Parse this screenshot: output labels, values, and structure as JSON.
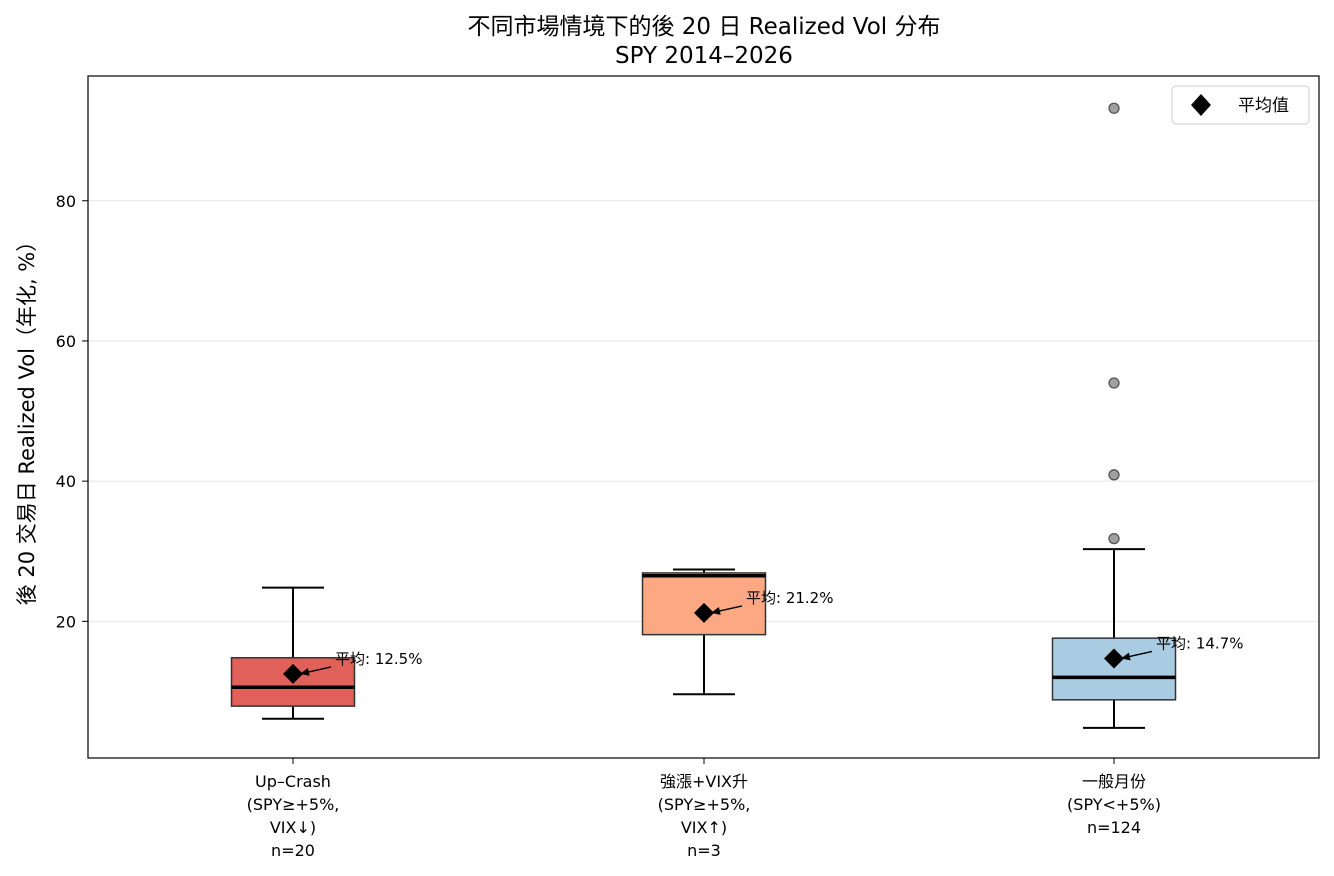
{
  "chart_data": {
    "type": "box",
    "title": "不同市場情境下的後 20 日 Realized Vol 分布",
    "subtitle": "SPY 2014–2026",
    "xlabel": "",
    "ylabel": "後 20 交易日 Realized Vol（年化, %）",
    "ylim": [
      0.5,
      97.8
    ],
    "yticks": [
      20,
      40,
      60,
      80
    ],
    "grid": "y",
    "legend": {
      "placement": "top-right",
      "label": "平均值",
      "marker": "diamond"
    },
    "groups": [
      {
        "label_lines": [
          "Up–Crash",
          "(SPY≥+5%,",
          "VIX↓)",
          "n=20"
        ],
        "color": "#e0605a",
        "whisker_low": 6.1,
        "q1": 7.9,
        "median": 10.6,
        "q3": 14.8,
        "whisker_high": 24.8,
        "mean": 12.5,
        "outliers": [],
        "mean_label": "平均: 12.5%"
      },
      {
        "label_lines": [
          "強漲+VIX升",
          "(SPY≥+5%,",
          "VIX↑)",
          "n=3"
        ],
        "color": "#fca882",
        "whisker_low": 9.6,
        "q1": 18.1,
        "median": 26.5,
        "q3": 26.9,
        "whisker_high": 27.4,
        "mean": 21.2,
        "outliers": [],
        "mean_label": "平均: 21.2%"
      },
      {
        "label_lines": [
          "一般月份",
          "(SPY<+5%)",
          "n=124"
        ],
        "color": "#a9cce3",
        "whisker_low": 4.8,
        "q1": 8.8,
        "median": 12.0,
        "q3": 17.6,
        "whisker_high": 30.3,
        "mean": 14.7,
        "outliers": [
          31.8,
          40.9,
          54.0,
          93.2
        ],
        "mean_label": "平均: 14.7%"
      }
    ]
  }
}
